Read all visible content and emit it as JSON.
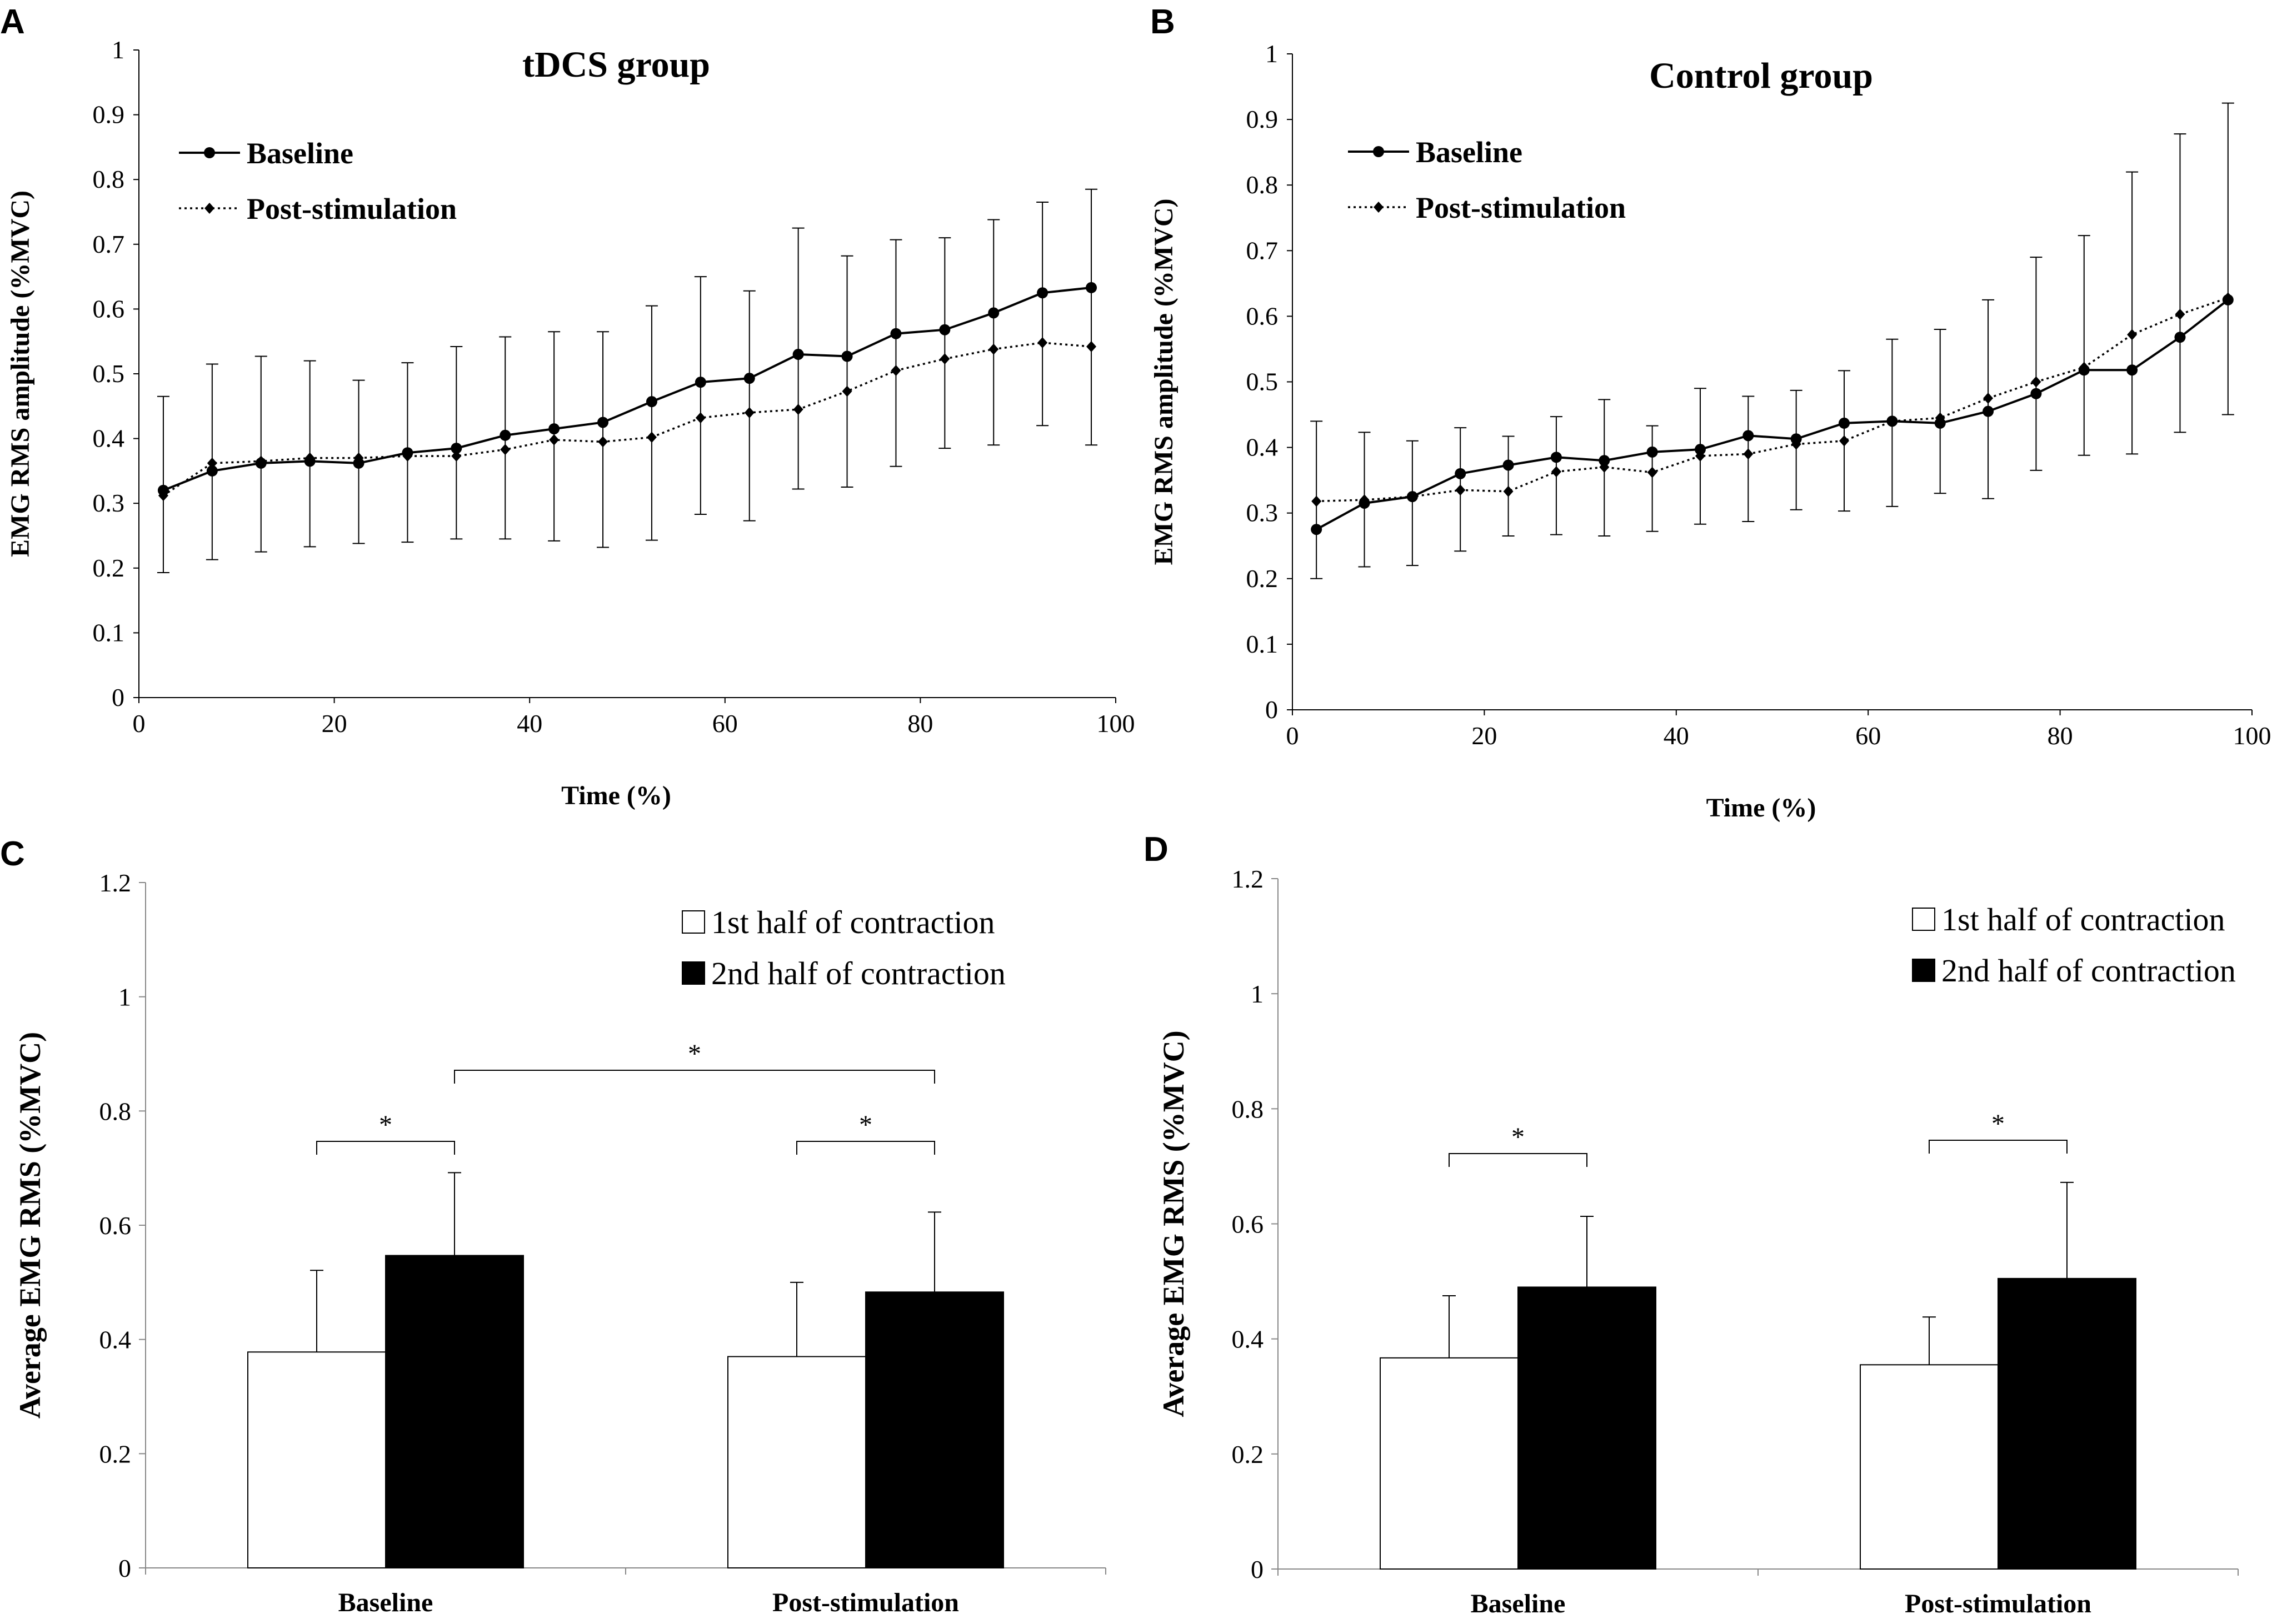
{
  "chart_data": [
    {
      "panel": "A",
      "type": "line",
      "title": "tDCS group",
      "xlabel": "Time (%)",
      "ylabel": "EMG RMS amplitude (%MVC)",
      "xlim": [
        0,
        100
      ],
      "ylim": [
        0,
        1
      ],
      "xticks": [
        "0",
        "20",
        "40",
        "60",
        "80",
        "100"
      ],
      "yticks": [
        "0",
        "0.1",
        "0.2",
        "0.3",
        "0.4",
        "0.5",
        "0.6",
        "0.7",
        "0.8",
        "0.9",
        "1"
      ],
      "x": [
        2.5,
        7.5,
        12.5,
        17.5,
        22.5,
        27.5,
        32.5,
        37.5,
        42.5,
        47.5,
        52.5,
        57.5,
        62.5,
        67.5,
        72.5,
        77.5,
        82.5,
        87.5,
        92.5,
        97.5
      ],
      "legend": "top-left",
      "series": [
        {
          "name": "Baseline",
          "style": "solid",
          "marker": "circle",
          "values": [
            0.32,
            0.35,
            0.362,
            0.365,
            0.362,
            0.378,
            0.385,
            0.405,
            0.415,
            0.425,
            0.457,
            0.487,
            0.493,
            0.53,
            0.527,
            0.562,
            0.568,
            0.594,
            0.625,
            0.633
          ],
          "error_upper": [
            0.465,
            null,
            null,
            null,
            null,
            null,
            null,
            null,
            null,
            null,
            null,
            null,
            null,
            0.725,
            0.682,
            0.707,
            0.71,
            0.738,
            0.765,
            0.785
          ]
        },
        {
          "name": "Post-stimulation",
          "style": "dotted",
          "marker": "diamond",
          "values": [
            0.312,
            0.362,
            0.365,
            0.37,
            0.37,
            0.373,
            0.373,
            0.383,
            0.398,
            0.395,
            0.402,
            0.432,
            0.44,
            0.445,
            0.473,
            0.505,
            0.523,
            0.538,
            0.548,
            0.542
          ],
          "error_upper": [
            null,
            0.515,
            0.527,
            0.52,
            0.49,
            0.517,
            0.542,
            0.557,
            0.565,
            0.565,
            0.605,
            0.65,
            0.628,
            null,
            null,
            null,
            null,
            null,
            null,
            null
          ]
        }
      ],
      "error_lower": [
        0.193,
        0.213,
        0.225,
        0.233,
        0.238,
        0.24,
        0.245,
        0.245,
        0.242,
        0.232,
        0.243,
        0.283,
        0.273,
        0.322,
        0.325,
        0.357,
        0.385,
        0.39,
        0.42,
        0.39
      ]
    },
    {
      "panel": "B",
      "type": "line",
      "title": "Control group",
      "xlabel": "Time (%)",
      "ylabel": "EMG RMS amplitude (%MVC)",
      "xlim": [
        0,
        100
      ],
      "ylim": [
        0,
        1
      ],
      "xticks": [
        "0",
        "20",
        "40",
        "60",
        "80",
        "100"
      ],
      "yticks": [
        "0",
        "0.1",
        "0.2",
        "0.3",
        "0.4",
        "0.5",
        "0.6",
        "0.7",
        "0.8",
        "0.9",
        "1"
      ],
      "x": [
        2.5,
        7.5,
        12.5,
        17.5,
        22.5,
        27.5,
        32.5,
        37.5,
        42.5,
        47.5,
        52.5,
        57.5,
        62.5,
        67.5,
        72.5,
        77.5,
        82.5,
        87.5,
        92.5,
        97.5
      ],
      "legend": "top-left",
      "series": [
        {
          "name": "Baseline",
          "style": "solid",
          "marker": "circle",
          "values": [
            0.275,
            0.315,
            0.325,
            0.36,
            0.373,
            0.385,
            0.38,
            0.393,
            0.397,
            0.418,
            0.413,
            0.437,
            0.44,
            0.437,
            0.455,
            0.482,
            0.518,
            0.518,
            0.568,
            0.625
          ],
          "error_upper": [
            0.44,
            0.423,
            0.41,
            0.43,
            0.417,
            0.447,
            0.473,
            0.433,
            0.49,
            0.478,
            0.487,
            0.517,
            0.565,
            0.58,
            0.625,
            0.69,
            0.723,
            0.82,
            0.878,
            0.925
          ]
        },
        {
          "name": "Post-stimulation",
          "style": "dotted",
          "marker": "diamond",
          "values": [
            0.318,
            0.32,
            0.325,
            0.335,
            0.333,
            0.363,
            0.37,
            0.362,
            0.387,
            0.39,
            0.405,
            0.41,
            0.44,
            0.445,
            0.475,
            0.5,
            0.522,
            0.572,
            0.603,
            0.628
          ],
          "error_upper": [
            null,
            null,
            null,
            null,
            null,
            null,
            null,
            null,
            null,
            null,
            null,
            null,
            null,
            null,
            null,
            null,
            null,
            null,
            null,
            null
          ]
        }
      ],
      "error_lower": [
        0.2,
        0.218,
        0.22,
        0.242,
        0.265,
        0.267,
        0.265,
        0.272,
        0.283,
        0.287,
        0.305,
        0.303,
        0.31,
        0.33,
        0.322,
        0.365,
        0.388,
        0.39,
        0.423,
        0.45
      ]
    },
    {
      "panel": "C",
      "type": "bar",
      "ylabel": "Average EMG RMS (%MVC)",
      "categories": [
        "Baseline",
        "Post-stimulation"
      ],
      "ylim": [
        0,
        1.2
      ],
      "yticks": [
        "0",
        "0.2",
        "0.4",
        "0.6",
        "0.8",
        "1",
        "1.2"
      ],
      "legend": "top-right",
      "series": [
        {
          "name": "1st half of contraction",
          "color": "#ffffff",
          "values": [
            0.378,
            0.37
          ],
          "error": [
            0.143,
            0.13
          ]
        },
        {
          "name": "2nd half of contraction",
          "color": "#000000",
          "values": [
            0.547,
            0.483
          ],
          "error": [
            0.145,
            0.14
          ]
        }
      ],
      "significance": [
        {
          "label": "*",
          "between": "Baseline 1st vs 2nd half"
        },
        {
          "label": "*",
          "between": "Post-stimulation 1st vs 2nd half"
        },
        {
          "label": "*",
          "between": "Baseline 2nd half vs Post-stimulation 2nd half"
        }
      ]
    },
    {
      "panel": "D",
      "type": "bar",
      "ylabel": "Average EMG RMS (%MVC)",
      "categories": [
        "Baseline",
        "Post-stimulation"
      ],
      "ylim": [
        0,
        1.2
      ],
      "yticks": [
        "0",
        "0.2",
        "0.4",
        "0.6",
        "0.8",
        "1",
        "1.2"
      ],
      "legend": "top-right",
      "series": [
        {
          "name": "1st half of contraction",
          "color": "#ffffff",
          "values": [
            0.367,
            0.355
          ],
          "error": [
            0.108,
            0.083
          ]
        },
        {
          "name": "2nd half of contraction",
          "color": "#000000",
          "values": [
            0.49,
            0.505
          ],
          "error": [
            0.123,
            0.167
          ]
        }
      ],
      "significance": [
        {
          "label": "*",
          "between": "Baseline 1st vs 2nd half"
        },
        {
          "label": "*",
          "between": "Post-stimulation 1st vs 2nd half"
        }
      ]
    }
  ]
}
